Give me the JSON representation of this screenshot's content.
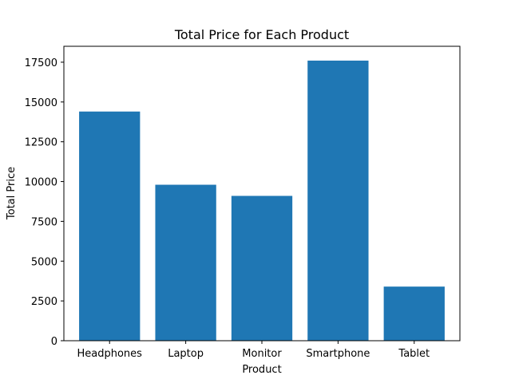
{
  "chart_data": {
    "type": "bar",
    "title": "Total Price for Each Product",
    "xlabel": "Product",
    "ylabel": "Total Price",
    "categories": [
      "Headphones",
      "Laptop",
      "Monitor",
      "Smartphone",
      "Tablet"
    ],
    "values": [
      14400,
      9800,
      9100,
      17600,
      3400
    ],
    "ylim": [
      0,
      18500
    ],
    "yticks": [
      0,
      2500,
      5000,
      7500,
      10000,
      12500,
      15000,
      17500
    ],
    "ytick_labels": [
      "0",
      "2500",
      "5000",
      "7500",
      "10000",
      "12500",
      "15000",
      "17500"
    ],
    "bar_color": "#1f77b4",
    "grid": false,
    "legend": "none"
  }
}
